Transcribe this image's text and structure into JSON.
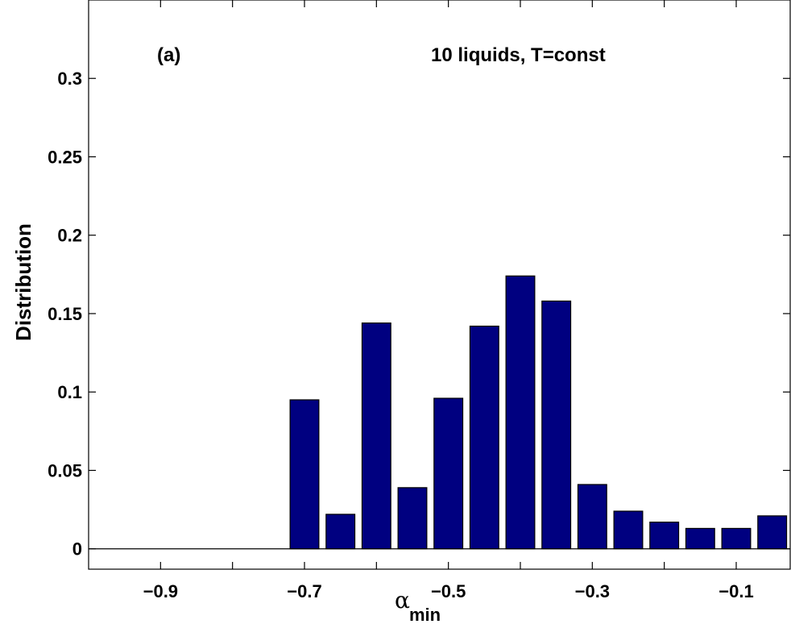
{
  "chart_data": {
    "type": "bar",
    "x": [
      -0.7,
      -0.65,
      -0.6,
      -0.55,
      -0.5,
      -0.45,
      -0.4,
      -0.35,
      -0.3,
      -0.25,
      -0.2,
      -0.15,
      -0.1,
      -0.05
    ],
    "values": [
      0.095,
      0.022,
      0.144,
      0.039,
      0.096,
      0.142,
      0.174,
      0.158,
      0.041,
      0.024,
      0.017,
      0.013,
      0.013,
      0.021
    ],
    "bar_color": "#000080",
    "xlim": [
      -1.0,
      -0.025
    ],
    "ylim": [
      -0.013,
      0.35
    ],
    "xticks": [
      -0.9,
      -0.7,
      -0.5,
      -0.3,
      -0.1
    ],
    "xtick_labels": [
      "−0.9",
      "−0.7",
      "−0.5",
      "−0.3",
      "−0.1"
    ],
    "xminor_ticks": [
      -0.8,
      -0.6,
      -0.4,
      -0.2
    ],
    "yticks": [
      0,
      0.05,
      0.1,
      0.15,
      0.2,
      0.25,
      0.3
    ],
    "ytick_labels": [
      "0",
      "0.05",
      "0.1",
      "0.15",
      "0.2",
      "0.25",
      "0.3"
    ],
    "ylabel": "Distribution",
    "xlabel": {
      "main": "α",
      "sub": "min"
    },
    "annotations": {
      "panel": "(a)",
      "title": "10 liquids, T=const"
    },
    "grid": false
  }
}
